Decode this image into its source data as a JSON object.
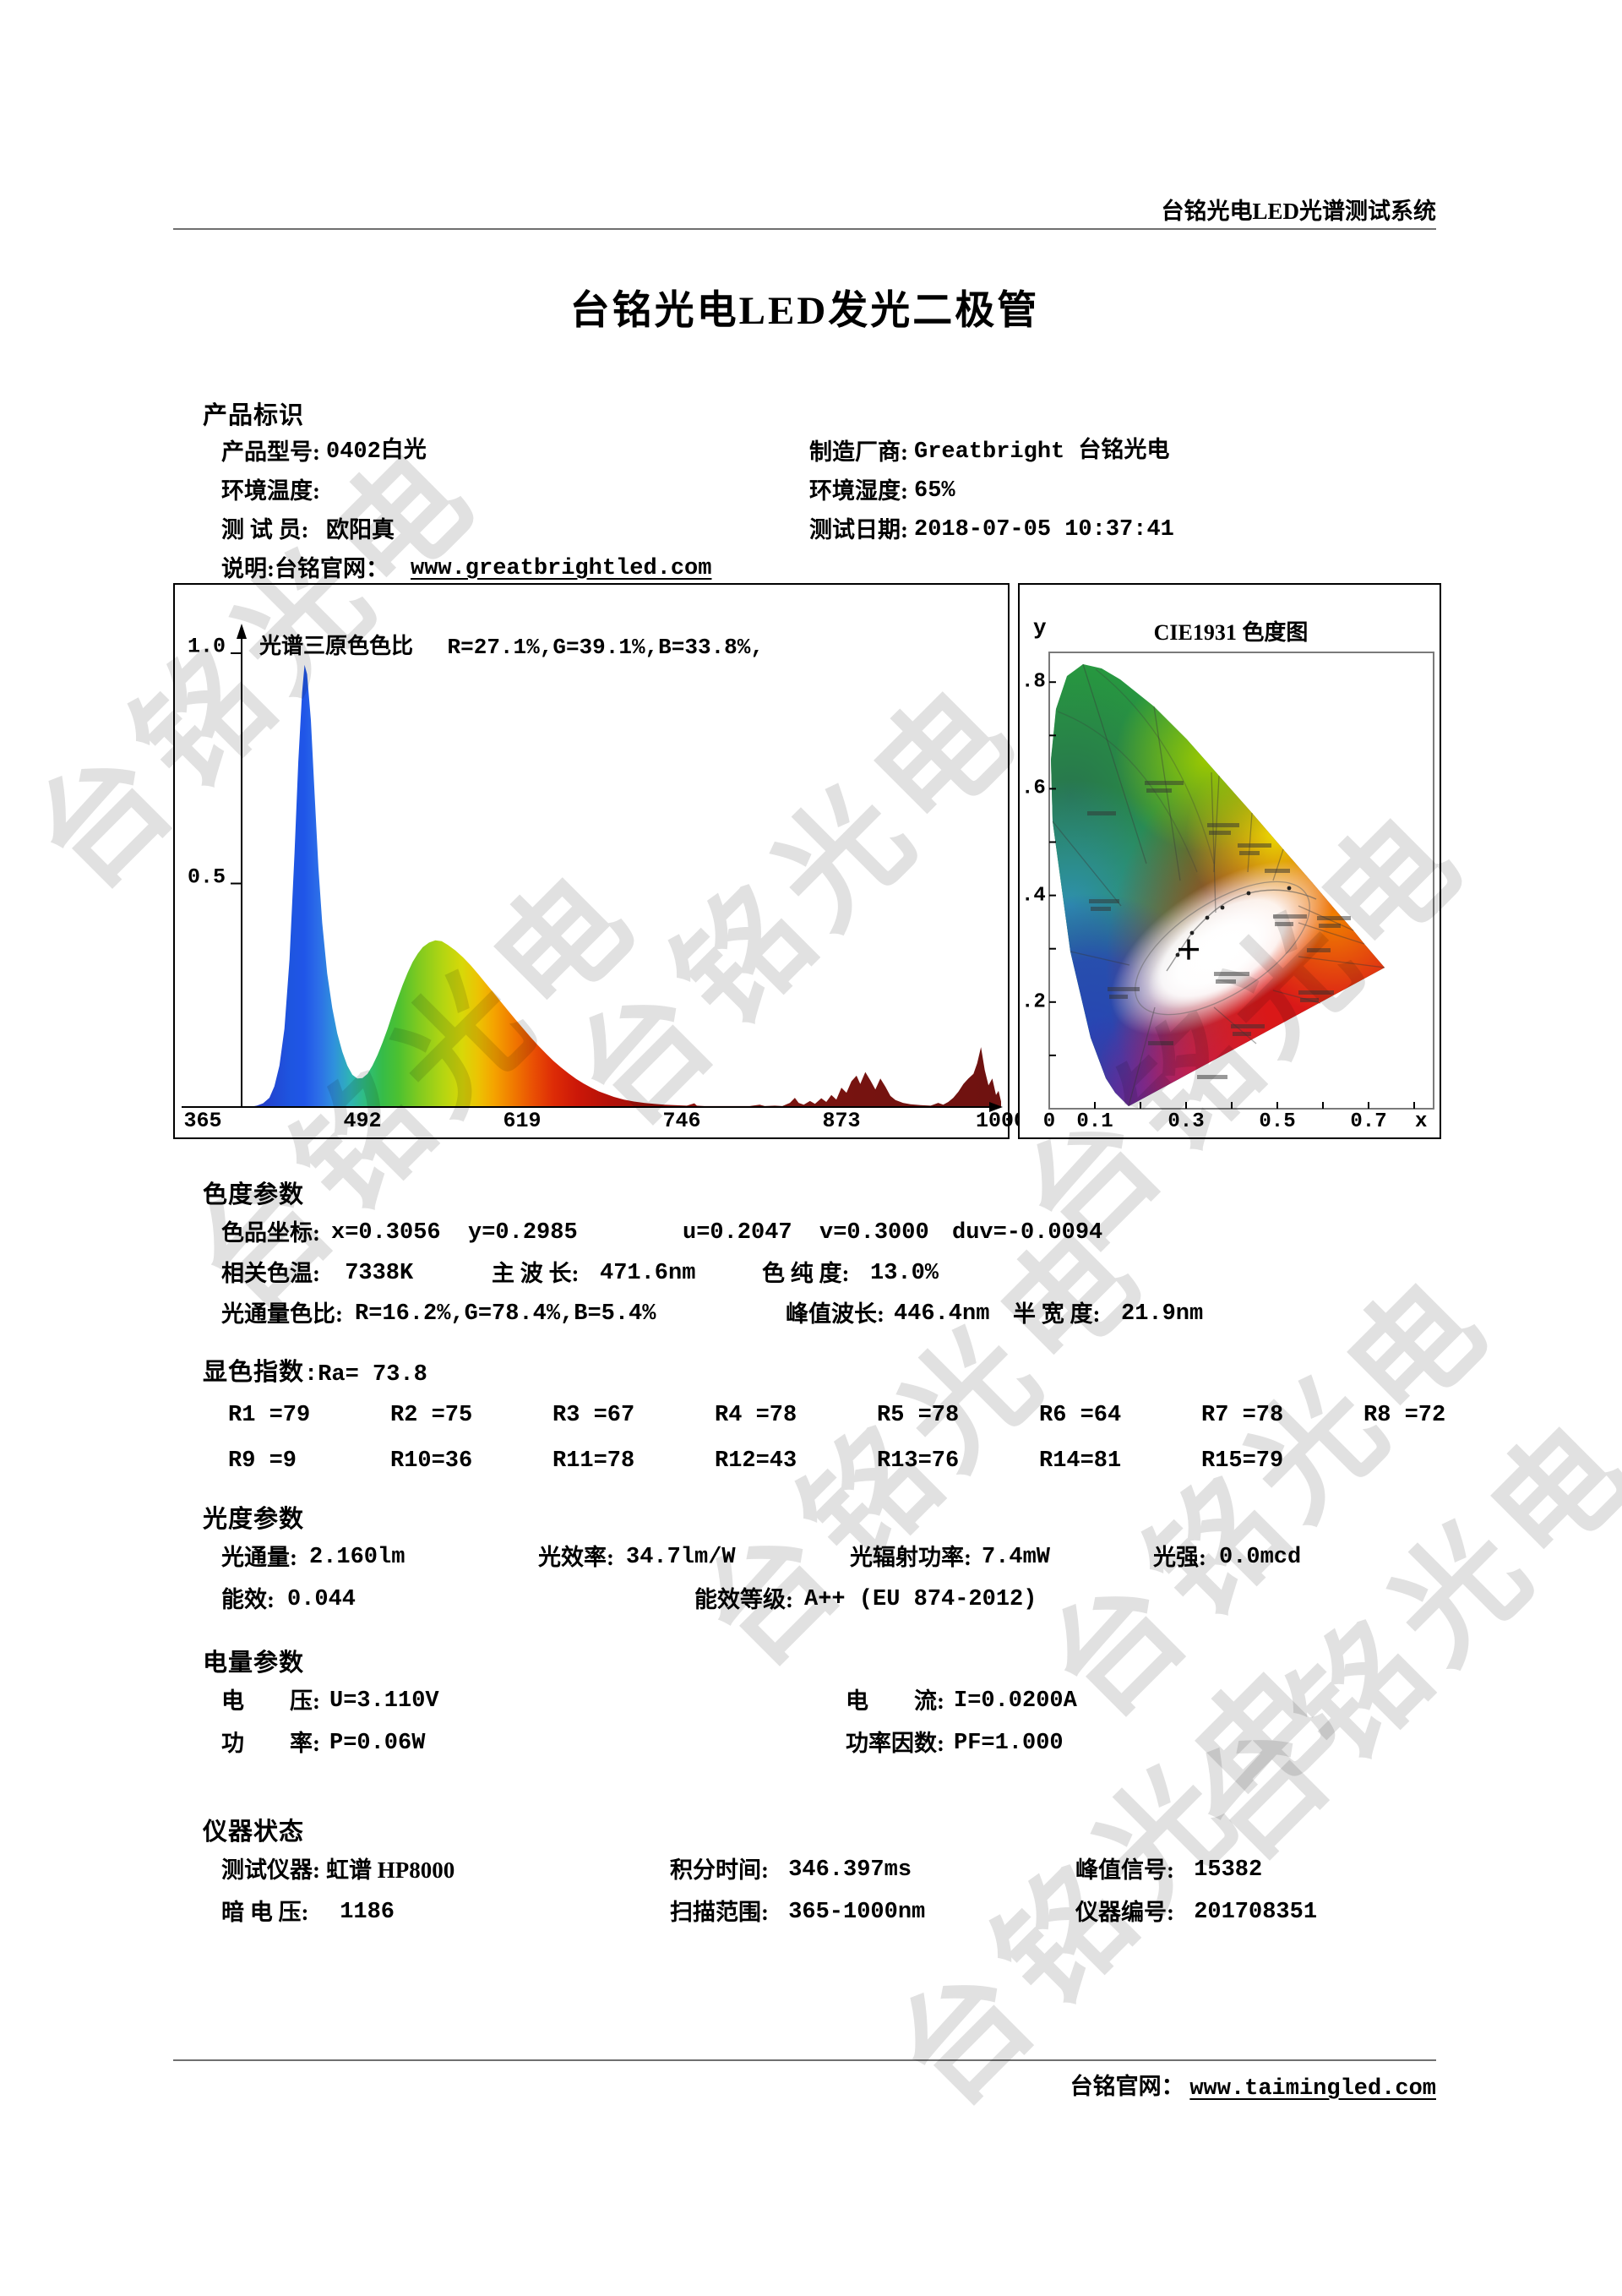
{
  "page": {
    "header": "台铭光电LED光谱测试系统",
    "title": "台铭光电LED发光二极管",
    "watermark": "台铭光电",
    "footer_label": "台铭官网：",
    "footer_url": "www.taimingled.com"
  },
  "product": {
    "title": "产品标识",
    "model_label": "产品型号:",
    "model_value": "0402白光",
    "manufacturer_label": "制造厂商:",
    "manufacturer_value": "Greatbright 台铭光电",
    "temp_label": "环境温度:",
    "temp_value": "",
    "humidity_label": "环境湿度:",
    "humidity_value": "65%",
    "tester_label": "测 试 员:",
    "tester_value": "欧阳真",
    "date_label": "测试日期:",
    "date_value": "2018-07-05 10:37:41",
    "note_label": "说明:台铭官网：",
    "note_url": "www.greatbrightled.com"
  },
  "chromaticity": {
    "title": "色度参数",
    "coord_label": "色品坐标:",
    "coord_value": "x=0.3056  y=0.2985",
    "uv_value": "u=0.2047  v=0.3000",
    "duv_value": "duv=-0.0094",
    "cct_label": "相关色温:",
    "cct_value": " 7338K",
    "dominant_label": "主 波 长:",
    "dominant_value": "471.6nm",
    "purity_label": "色 纯 度:",
    "purity_value": "13.0%",
    "flux_ratio_label": "光通量色比:",
    "flux_ratio_value": "R=16.2%,G=78.4%,B=5.4%",
    "peak_label": "峰值波长:",
    "peak_value": "446.4nm",
    "halfwidth_label": "半 宽 度:",
    "halfwidth_value": "21.9nm"
  },
  "cri": {
    "title": "显色指数",
    "ra_label": ":Ra=",
    "ra_value": " 73.8",
    "row1": [
      "R1 =79",
      "R2 =75",
      "R3 =67",
      "R4 =78",
      "R5 =78",
      "R6 =64",
      "R7 =78",
      "R8 =72"
    ],
    "row2": [
      "R9 =9",
      "R10=36",
      "R11=78",
      "R12=43",
      "R13=76",
      "R14=81",
      "R15=79"
    ]
  },
  "photometric": {
    "title": "光度参数",
    "flux_label": "光通量:",
    "flux_value": "2.160lm",
    "efficacy_label": "光效率:",
    "efficacy_value": "34.7lm/W",
    "radiant_label": "光辐射功率:",
    "radiant_value": "7.4mW",
    "intensity_label": "光强:",
    "intensity_value": "0.0mcd",
    "efficiency_label": "能效:",
    "efficiency_value": "0.044",
    "class_label": "能效等级:",
    "class_value": "A++ (EU 874-2012)"
  },
  "electrical": {
    "title": "电量参数",
    "voltage_label": "电　　压:",
    "voltage_value": "U=3.110V",
    "current_label": "电　　流:",
    "current_value": "I=0.0200A",
    "power_label": "功　　率:",
    "power_value": "P=0.06W",
    "pf_label": "功率因数:",
    "pf_value": "PF=1.000"
  },
  "instrument": {
    "title": "仪器状态",
    "device_label": "测试仪器:",
    "device_value": "虹谱 HP8000",
    "integration_label": "积分时间:",
    "integration_value": " 346.397ms",
    "peak_signal_label": "峰值信号:",
    "peak_signal_value": " 15382",
    "dark_label": "暗 电 压:",
    "dark_value": " 1186",
    "scan_label": "扫描范围:",
    "scan_value": " 365-1000nm",
    "serial_label": "仪器编号:",
    "serial_value": " 201708351"
  },
  "chart_data": [
    {
      "type": "area",
      "annotation_label": "光谱三原色色比",
      "annotation_value": "R=27.1%,G=39.1%,B=33.8%,",
      "x_range": [
        365,
        1000
      ],
      "y_range": [
        0,
        1.0
      ],
      "x_ticks": [
        365,
        492,
        619,
        746,
        873,
        1000
      ],
      "y_tick_labels": [
        "1.0",
        "0.5"
      ],
      "peak_wavelength_nm": 446.4,
      "half_width_nm": 21.9,
      "points": [
        [
          365,
          0
        ],
        [
          402,
          0
        ],
        [
          408,
          0.003
        ],
        [
          413,
          0.008
        ],
        [
          418,
          0.02
        ],
        [
          422,
          0.045
        ],
        [
          426,
          0.09
        ],
        [
          430,
          0.17
        ],
        [
          434,
          0.32
        ],
        [
          438,
          0.55
        ],
        [
          441,
          0.75
        ],
        [
          444,
          0.9
        ],
        [
          446,
          0.96
        ],
        [
          448,
          0.94
        ],
        [
          451,
          0.84
        ],
        [
          454,
          0.68
        ],
        [
          457,
          0.52
        ],
        [
          460,
          0.4
        ],
        [
          464,
          0.29
        ],
        [
          468,
          0.215
        ],
        [
          472,
          0.16
        ],
        [
          476,
          0.12
        ],
        [
          480,
          0.09
        ],
        [
          484,
          0.07
        ],
        [
          488,
          0.062
        ],
        [
          492,
          0.063
        ],
        [
          496,
          0.072
        ],
        [
          500,
          0.09
        ],
        [
          504,
          0.113
        ],
        [
          508,
          0.14
        ],
        [
          512,
          0.17
        ],
        [
          516,
          0.203
        ],
        [
          520,
          0.235
        ],
        [
          524,
          0.265
        ],
        [
          528,
          0.292
        ],
        [
          532,
          0.315
        ],
        [
          536,
          0.333
        ],
        [
          540,
          0.347
        ],
        [
          545,
          0.357
        ],
        [
          550,
          0.362
        ],
        [
          555,
          0.36
        ],
        [
          560,
          0.352
        ],
        [
          566,
          0.34
        ],
        [
          572,
          0.325
        ],
        [
          578,
          0.308
        ],
        [
          584,
          0.289
        ],
        [
          590,
          0.269
        ],
        [
          596,
          0.249
        ],
        [
          602,
          0.229
        ],
        [
          608,
          0.209
        ],
        [
          614,
          0.189
        ],
        [
          620,
          0.17
        ],
        [
          626,
          0.151
        ],
        [
          632,
          0.133
        ],
        [
          638,
          0.116
        ],
        [
          644,
          0.1
        ],
        [
          650,
          0.086
        ],
        [
          656,
          0.073
        ],
        [
          662,
          0.061
        ],
        [
          668,
          0.051
        ],
        [
          674,
          0.042
        ],
        [
          680,
          0.034
        ],
        [
          686,
          0.028
        ],
        [
          692,
          0.022
        ],
        [
          700,
          0.016
        ],
        [
          708,
          0.012
        ],
        [
          716,
          0.009
        ],
        [
          724,
          0.007
        ],
        [
          732,
          0.005
        ],
        [
          740,
          0.004
        ],
        [
          750,
          0.003
        ],
        [
          756,
          0.008
        ],
        [
          758,
          0.003
        ],
        [
          764,
          0.002
        ],
        [
          772,
          0.002
        ],
        [
          780,
          0.002
        ],
        [
          790,
          0.002
        ],
        [
          800,
          0.002
        ],
        [
          808,
          0.005
        ],
        [
          812,
          0.002
        ],
        [
          820,
          0.003
        ],
        [
          826,
          0.002
        ],
        [
          832,
          0.009
        ],
        [
          836,
          0.02
        ],
        [
          839,
          0.009
        ],
        [
          843,
          0.005
        ],
        [
          848,
          0.013
        ],
        [
          852,
          0.007
        ],
        [
          857,
          0.019
        ],
        [
          861,
          0.011
        ],
        [
          865,
          0.026
        ],
        [
          869,
          0.016
        ],
        [
          873,
          0.042
        ],
        [
          877,
          0.031
        ],
        [
          881,
          0.056
        ],
        [
          885,
          0.068
        ],
        [
          888,
          0.05
        ],
        [
          892,
          0.076
        ],
        [
          896,
          0.058
        ],
        [
          900,
          0.038
        ],
        [
          904,
          0.062
        ],
        [
          908,
          0.044
        ],
        [
          912,
          0.024
        ],
        [
          916,
          0.015
        ],
        [
          922,
          0.009
        ],
        [
          928,
          0.006
        ],
        [
          936,
          0.004
        ],
        [
          944,
          0.003
        ],
        [
          950,
          0.009
        ],
        [
          954,
          0.005
        ],
        [
          958,
          0.011
        ],
        [
          962,
          0.02
        ],
        [
          966,
          0.033
        ],
        [
          970,
          0.05
        ],
        [
          974,
          0.062
        ],
        [
          978,
          0.072
        ],
        [
          981,
          0.095
        ],
        [
          984,
          0.13
        ],
        [
          987,
          0.08
        ],
        [
          990,
          0.047
        ],
        [
          993,
          0.062
        ],
        [
          996,
          0.026
        ],
        [
          998,
          0.035
        ],
        [
          1000,
          0.012
        ]
      ]
    },
    {
      "type": "scatter",
      "title": "CIE1931 色度图",
      "x_label": "x",
      "y_label": "y",
      "x_tick_labels": [
        "0",
        "0.1",
        "0.3",
        "0.5",
        "0.7"
      ],
      "y_tick_labels": [
        ".8",
        ".6",
        ".4",
        ".2"
      ],
      "x_range": [
        0,
        0.85
      ],
      "y_range": [
        0,
        0.86
      ],
      "points": [
        {
          "x": 0.3056,
          "y": 0.2985
        }
      ]
    }
  ]
}
